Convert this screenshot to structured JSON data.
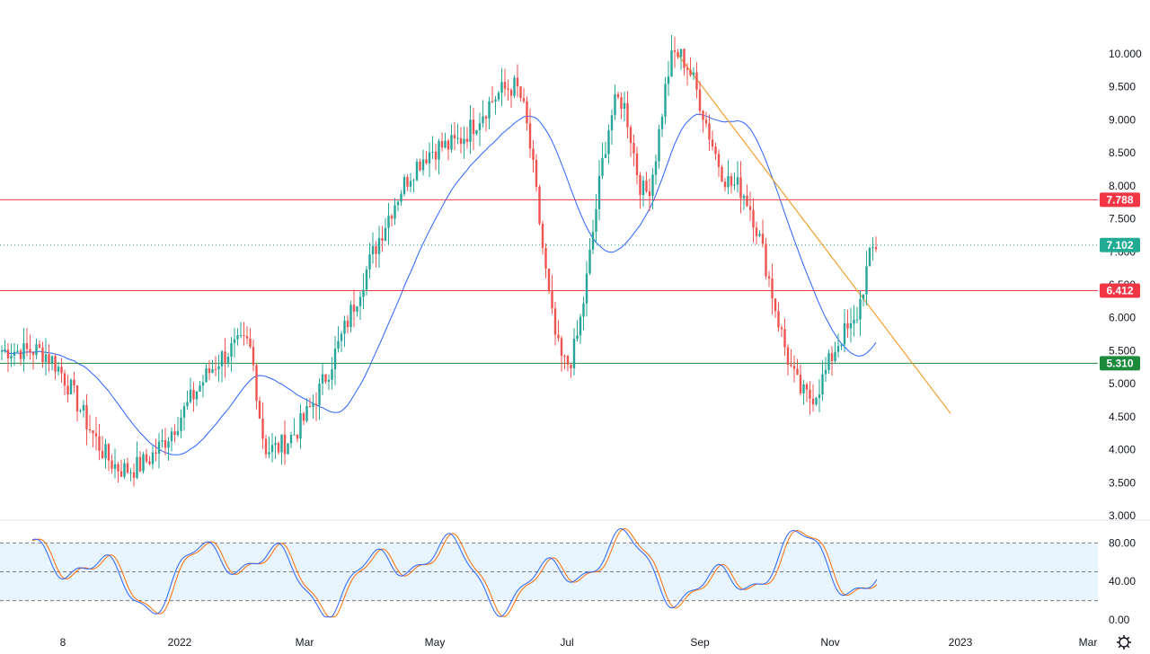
{
  "chart_data": [
    {
      "type": "candlestick",
      "price_axis": {
        "ticks": [
          "10.000",
          "9.500",
          "9.000",
          "8.500",
          "8.000",
          "7.500",
          "7.000",
          "6.500",
          "6.000",
          "5.500",
          "5.000",
          "4.500",
          "4.000",
          "3.500",
          "3.000"
        ],
        "range": [
          3.0,
          10.0
        ]
      },
      "time_axis": {
        "ticks": [
          "8",
          "2022",
          "Mar",
          "May",
          "Jul",
          "Sep",
          "Nov",
          "2023",
          "Mar"
        ]
      },
      "key_points": [
        {
          "date": "Dec 2021",
          "value": 5.5
        },
        {
          "date": "Jan 2022",
          "value": 3.7
        },
        {
          "date": "Feb 2022",
          "value": 5.6
        },
        {
          "date": "Feb 2022",
          "value": 4.0
        },
        {
          "date": "Apr 2022",
          "value": 8.6
        },
        {
          "date": "May 2022",
          "value": 9.5
        },
        {
          "date": "Jun 2022",
          "value": 5.3
        },
        {
          "date": "Jul 2022",
          "value": 9.3
        },
        {
          "date": "Jul 2022",
          "value": 7.9
        },
        {
          "date": "Aug 2022",
          "value": 10.0
        },
        {
          "date": "Sep 2022",
          "value": 8.0
        },
        {
          "date": "Oct 2022",
          "value": 4.8
        },
        {
          "date": "Nov 2022",
          "value": 5.8
        },
        {
          "date": "Nov 2022",
          "value": 7.102
        }
      ],
      "moving_average": "blue",
      "horizontal_levels": [
        {
          "value": 7.788,
          "label": "7.788",
          "color": "#f23645"
        },
        {
          "value": 6.412,
          "label": "6.412",
          "color": "#f23645"
        },
        {
          "value": 5.31,
          "label": "5.310",
          "color": "#1b8a3a"
        }
      ],
      "last_price": {
        "value": 7.102,
        "label": "7.102",
        "color": "#22ab94"
      },
      "trendline": {
        "from": {
          "date": "Aug 2022",
          "value": 10.0
        },
        "to": {
          "date": "Dec 2022",
          "value": 4.55
        },
        "color": "#f0a030"
      },
      "colors": {
        "up": "#26a69a",
        "down": "#ef5350"
      }
    },
    {
      "type": "line",
      "indicator": "stochastic",
      "ticks": [
        "80.00",
        "40.00",
        "0.00"
      ],
      "range": [
        0,
        100
      ],
      "band": [
        20,
        80
      ],
      "series_colors": [
        "#2962ff",
        "#ff6d00"
      ]
    }
  ]
}
